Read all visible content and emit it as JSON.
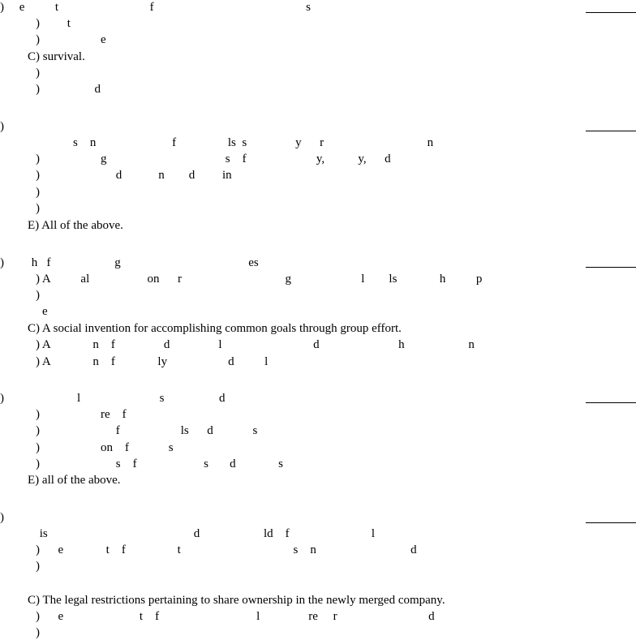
{
  "questions": [
    {
      "lines": [
        ")     e          t                              f                                                  s",
        ")         t",
        ")                    e",
        "C) survival.",
        ")",
        ")                  d"
      ]
    },
    {
      "lines": [
        ")",
        "                        s    n                         f                 ls  s                y      r                                  n",
        ")                    g                                       s    f                       y,           y,      d",
        ")                         d            n        d         in",
        ")",
        ")",
        "E) All of the above."
      ]
    },
    {
      "lines": [
        ")         h   f                     g                                          es",
        ") A          al                   on      r                                  g                       l        ls              h          p",
        ")",
        "e",
        "C) A social invention for accomplishing common goals through group effort.",
        ") A              n    f                d                l                              d                          h                     n",
        ") A              n    f              ly                    d          l"
      ]
    },
    {
      "lines": [
        ")                        l                          s                  d",
        ")                    re    f",
        ")                         f                    ls      d             s",
        ")                    on    f             s",
        ")                         s    f                      s       d              s",
        "E) all of the above."
      ]
    },
    {
      "lines": [
        ")",
        "             is                                                d                     ld    f                           l",
        ")      e              t    f                 t                                     s    n                               d",
        ")",
        "",
        "C) The legal restrictions pertaining to share ownership in the newly merged company.",
        ")      e                         t    f                                l                re     r                              d",
        ")"
      ]
    }
  ]
}
